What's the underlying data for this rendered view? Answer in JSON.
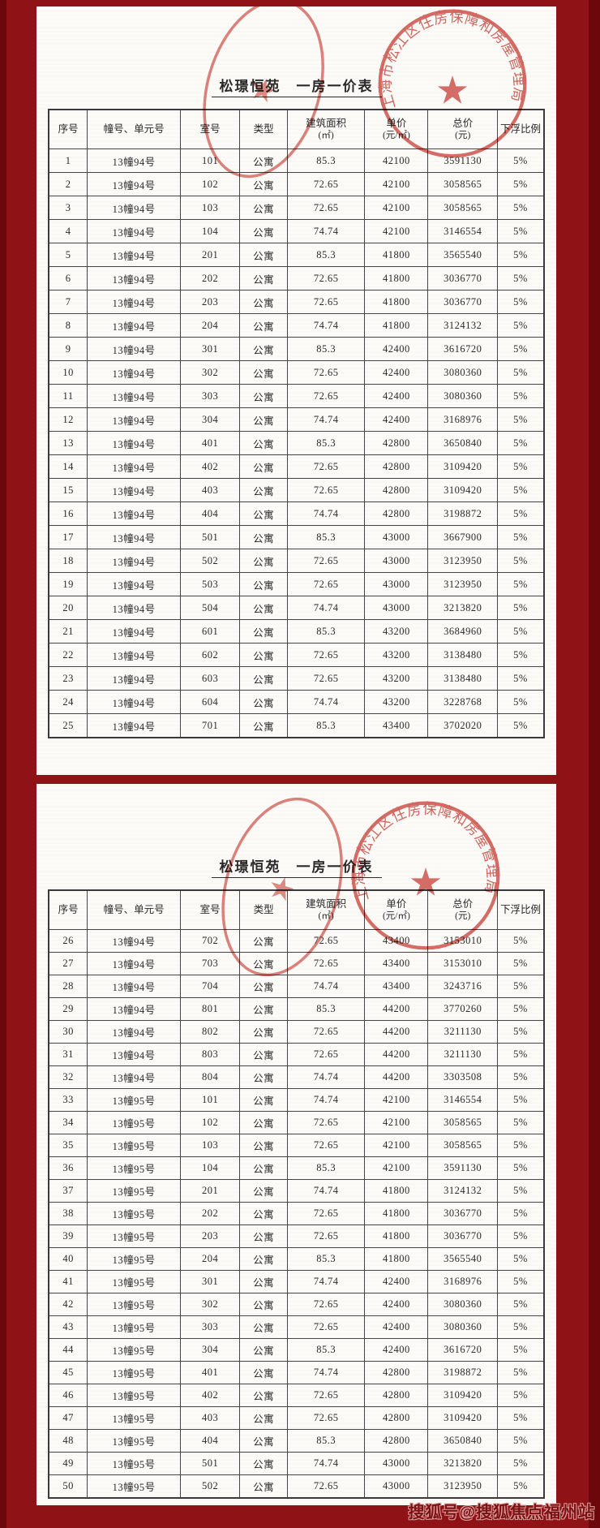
{
  "doc": {
    "kind": "scanned price list",
    "title": "松璟恒苑　一房一价表"
  },
  "colors": {
    "background_maroon": "#8f1217",
    "background_maroon_dark": "#6c080c",
    "page_white": "#fcfbf8",
    "seal_red": "#cf4f47",
    "text_dark": "#2b2a28"
  },
  "stamp": {
    "seal_text": "上海市松江区住房保障和房屋管理局",
    "star": "★"
  },
  "watermark": {
    "text": "搜狐号@搜狐焦点福州站"
  },
  "table": {
    "columns": [
      "序号",
      "幢号、单元号",
      "室号",
      "类型",
      "建筑面积",
      "单价",
      "总价",
      "下浮比例"
    ],
    "column_subs": [
      "",
      "",
      "",
      "",
      "(㎡)",
      "(元/㎡)",
      "(元)",
      ""
    ]
  },
  "pages": [
    {
      "title": "松璟恒苑　一房一价表",
      "rows": [
        [
          "1",
          "13幢94号",
          "101",
          "公寓",
          "85.3",
          "42100",
          "3591130",
          "5%"
        ],
        [
          "2",
          "13幢94号",
          "102",
          "公寓",
          "72.65",
          "42100",
          "3058565",
          "5%"
        ],
        [
          "3",
          "13幢94号",
          "103",
          "公寓",
          "72.65",
          "42100",
          "3058565",
          "5%"
        ],
        [
          "4",
          "13幢94号",
          "104",
          "公寓",
          "74.74",
          "42100",
          "3146554",
          "5%"
        ],
        [
          "5",
          "13幢94号",
          "201",
          "公寓",
          "85.3",
          "41800",
          "3565540",
          "5%"
        ],
        [
          "6",
          "13幢94号",
          "202",
          "公寓",
          "72.65",
          "41800",
          "3036770",
          "5%"
        ],
        [
          "7",
          "13幢94号",
          "203",
          "公寓",
          "72.65",
          "41800",
          "3036770",
          "5%"
        ],
        [
          "8",
          "13幢94号",
          "204",
          "公寓",
          "74.74",
          "41800",
          "3124132",
          "5%"
        ],
        [
          "9",
          "13幢94号",
          "301",
          "公寓",
          "85.3",
          "42400",
          "3616720",
          "5%"
        ],
        [
          "10",
          "13幢94号",
          "302",
          "公寓",
          "72.65",
          "42400",
          "3080360",
          "5%"
        ],
        [
          "11",
          "13幢94号",
          "303",
          "公寓",
          "72.65",
          "42400",
          "3080360",
          "5%"
        ],
        [
          "12",
          "13幢94号",
          "304",
          "公寓",
          "74.74",
          "42400",
          "3168976",
          "5%"
        ],
        [
          "13",
          "13幢94号",
          "401",
          "公寓",
          "85.3",
          "42800",
          "3650840",
          "5%"
        ],
        [
          "14",
          "13幢94号",
          "402",
          "公寓",
          "72.65",
          "42800",
          "3109420",
          "5%"
        ],
        [
          "15",
          "13幢94号",
          "403",
          "公寓",
          "72.65",
          "42800",
          "3109420",
          "5%"
        ],
        [
          "16",
          "13幢94号",
          "404",
          "公寓",
          "74.74",
          "42800",
          "3198872",
          "5%"
        ],
        [
          "17",
          "13幢94号",
          "501",
          "公寓",
          "85.3",
          "43000",
          "3667900",
          "5%"
        ],
        [
          "18",
          "13幢94号",
          "502",
          "公寓",
          "72.65",
          "43000",
          "3123950",
          "5%"
        ],
        [
          "19",
          "13幢94号",
          "503",
          "公寓",
          "72.65",
          "43000",
          "3123950",
          "5%"
        ],
        [
          "20",
          "13幢94号",
          "504",
          "公寓",
          "74.74",
          "43000",
          "3213820",
          "5%"
        ],
        [
          "21",
          "13幢94号",
          "601",
          "公寓",
          "85.3",
          "43200",
          "3684960",
          "5%"
        ],
        [
          "22",
          "13幢94号",
          "602",
          "公寓",
          "72.65",
          "43200",
          "3138480",
          "5%"
        ],
        [
          "23",
          "13幢94号",
          "603",
          "公寓",
          "72.65",
          "43200",
          "3138480",
          "5%"
        ],
        [
          "24",
          "13幢94号",
          "604",
          "公寓",
          "74.74",
          "43200",
          "3228768",
          "5%"
        ],
        [
          "25",
          "13幢94号",
          "701",
          "公寓",
          "85.3",
          "43400",
          "3702020",
          "5%"
        ]
      ]
    },
    {
      "title": "松璟恒苑　一房一价表",
      "rows": [
        [
          "26",
          "13幢94号",
          "702",
          "公寓",
          "72.65",
          "43400",
          "3153010",
          "5%"
        ],
        [
          "27",
          "13幢94号",
          "703",
          "公寓",
          "72.65",
          "43400",
          "3153010",
          "5%"
        ],
        [
          "28",
          "13幢94号",
          "704",
          "公寓",
          "74.74",
          "43400",
          "3243716",
          "5%"
        ],
        [
          "29",
          "13幢94号",
          "801",
          "公寓",
          "85.3",
          "44200",
          "3770260",
          "5%"
        ],
        [
          "30",
          "13幢94号",
          "802",
          "公寓",
          "72.65",
          "44200",
          "3211130",
          "5%"
        ],
        [
          "31",
          "13幢94号",
          "803",
          "公寓",
          "72.65",
          "44200",
          "3211130",
          "5%"
        ],
        [
          "32",
          "13幢94号",
          "804",
          "公寓",
          "74.74",
          "44200",
          "3303508",
          "5%"
        ],
        [
          "33",
          "13幢95号",
          "101",
          "公寓",
          "74.74",
          "42100",
          "3146554",
          "5%"
        ],
        [
          "34",
          "13幢95号",
          "102",
          "公寓",
          "72.65",
          "42100",
          "3058565",
          "5%"
        ],
        [
          "35",
          "13幢95号",
          "103",
          "公寓",
          "72.65",
          "42100",
          "3058565",
          "5%"
        ],
        [
          "36",
          "13幢95号",
          "104",
          "公寓",
          "85.3",
          "42100",
          "3591130",
          "5%"
        ],
        [
          "37",
          "13幢95号",
          "201",
          "公寓",
          "74.74",
          "41800",
          "3124132",
          "5%"
        ],
        [
          "38",
          "13幢95号",
          "202",
          "公寓",
          "72.65",
          "41800",
          "3036770",
          "5%"
        ],
        [
          "39",
          "13幢95号",
          "203",
          "公寓",
          "72.65",
          "41800",
          "3036770",
          "5%"
        ],
        [
          "40",
          "13幢95号",
          "204",
          "公寓",
          "85.3",
          "41800",
          "3565540",
          "5%"
        ],
        [
          "41",
          "13幢95号",
          "301",
          "公寓",
          "74.74",
          "42400",
          "3168976",
          "5%"
        ],
        [
          "42",
          "13幢95号",
          "302",
          "公寓",
          "72.65",
          "42400",
          "3080360",
          "5%"
        ],
        [
          "43",
          "13幢95号",
          "303",
          "公寓",
          "72.65",
          "42400",
          "3080360",
          "5%"
        ],
        [
          "44",
          "13幢95号",
          "304",
          "公寓",
          "85.3",
          "42400",
          "3616720",
          "5%"
        ],
        [
          "45",
          "13幢95号",
          "401",
          "公寓",
          "74.74",
          "42800",
          "3198872",
          "5%"
        ],
        [
          "46",
          "13幢95号",
          "402",
          "公寓",
          "72.65",
          "42800",
          "3109420",
          "5%"
        ],
        [
          "47",
          "13幢95号",
          "403",
          "公寓",
          "72.65",
          "42800",
          "3109420",
          "5%"
        ],
        [
          "48",
          "13幢95号",
          "404",
          "公寓",
          "85.3",
          "42800",
          "3650840",
          "5%"
        ],
        [
          "49",
          "13幢95号",
          "501",
          "公寓",
          "74.74",
          "43000",
          "3213820",
          "5%"
        ],
        [
          "50",
          "13幢95号",
          "502",
          "公寓",
          "72.65",
          "43000",
          "3123950",
          "5%"
        ]
      ]
    }
  ]
}
